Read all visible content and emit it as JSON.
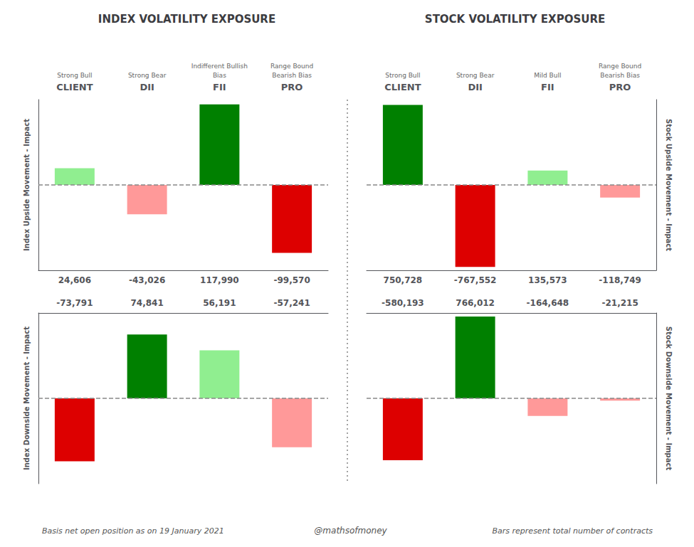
{
  "chart_data": [
    {
      "type": "bar",
      "title": "INDEX VOLATILITY EXPOSURE",
      "ylabel": "Index Upside Movement - Impact",
      "categories": [
        "CLIENT",
        "DII",
        "FII",
        "PRO"
      ],
      "annotations": [
        "Strong Bull",
        "Strong Bear",
        "Indifferent Bullish\nBias",
        "Range Bound\nBearish Bias"
      ],
      "values": [
        24606,
        -43026,
        117990,
        -99570
      ],
      "value_labels": [
        "24,606",
        "-43,026",
        "117,990",
        "-99,570"
      ],
      "colors": [
        "#90EE90",
        "#FF9999",
        "#008000",
        "#DD0000"
      ],
      "ylim": [
        -125000,
        125000
      ],
      "data_labels": true,
      "tick_labels": "x",
      "grid": false
    },
    {
      "type": "bar",
      "title": "STOCK VOLATILITY EXPOSURE",
      "ylabel": "Stock Upside Movement - Impact",
      "categories": [
        "CLIENT",
        "DII",
        "FII",
        "PRO"
      ],
      "annotations": [
        "Strong Bull",
        "Strong Bear",
        "Mild Bull",
        "Range Bound\nBearish Bias"
      ],
      "values": [
        750728,
        -767552,
        135573,
        -118749
      ],
      "value_labels": [
        "750,728",
        "-767,552",
        "135,573",
        "-118,749"
      ],
      "colors": [
        "#008000",
        "#DD0000",
        "#90EE90",
        "#FF9999"
      ],
      "ylim": [
        -800000,
        800000
      ],
      "data_labels": true,
      "tick_labels": "x",
      "grid": false
    },
    {
      "type": "bar",
      "ylabel": "Index Downside Movement - Impact",
      "categories": [
        "CLIENT",
        "DII",
        "FII",
        "PRO"
      ],
      "values": [
        -73791,
        74841,
        56191,
        -57241
      ],
      "value_labels": [
        "-73,791",
        "74,841",
        "56,191",
        "-57,241"
      ],
      "colors": [
        "#DD0000",
        "#008000",
        "#90EE90",
        "#FF9999"
      ],
      "ylim": [
        -100000,
        100000
      ],
      "data_labels": true,
      "tick_labels": false,
      "grid": false
    },
    {
      "type": "bar",
      "ylabel": "Stock Downside Movement - Impact",
      "categories": [
        "CLIENT",
        "DII",
        "FII",
        "PRO"
      ],
      "values": [
        -580193,
        766012,
        -164648,
        -21215
      ],
      "value_labels": [
        "-580,193",
        "766,012",
        "-164,648",
        "-21,215"
      ],
      "colors": [
        "#DD0000",
        "#008000",
        "#FF9999",
        "#FF9999"
      ],
      "ylim": [
        -800000,
        800000
      ],
      "data_labels": true,
      "tick_labels": false,
      "grid": false
    }
  ],
  "annotations": [
    "Basis net open position as on 19 January 2021",
    "@mathsofmoney",
    "Bars represent total number of contracts"
  ]
}
